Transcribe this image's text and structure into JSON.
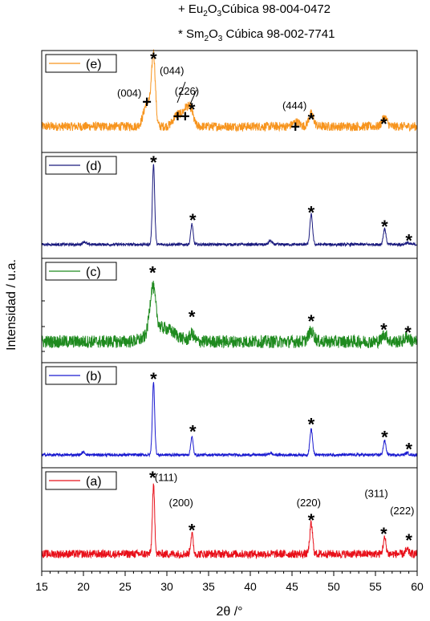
{
  "legend": {
    "line1_prefix": "+ Eu",
    "line1_sub1": "2",
    "line1_mid": "O",
    "line1_sub2": "3",
    "line1_suffix": "Cúbica 98-004-0472",
    "line2_prefix": "* Sm",
    "line2_sub1": "2",
    "line2_mid": "O",
    "line2_sub2": "3",
    "line2_suffix": " Cúbica 98-002-7741"
  },
  "chart_data": {
    "type": "line",
    "xlabel": "2θ /°",
    "ylabel": "Intensidad / u.a.",
    "xlim": [
      15,
      60
    ],
    "xticks": [
      15,
      20,
      25,
      30,
      35,
      40,
      45,
      50,
      55,
      60
    ],
    "grid": false,
    "series": [
      {
        "name": "(e)",
        "color": "#f7941d",
        "noise": 0.05,
        "base": 0.22,
        "peaks": [
          [
            27.7,
            0.28,
            0.45
          ],
          [
            28.4,
            0.75,
            0.22
          ],
          [
            31.3,
            0.14,
            0.5
          ],
          [
            32.3,
            0.18,
            0.35
          ],
          [
            32.9,
            0.16,
            0.3
          ],
          [
            45.5,
            0.05,
            0.4
          ],
          [
            47.3,
            0.14,
            0.3
          ],
          [
            56.1,
            0.1,
            0.3
          ]
        ],
        "markers": [
          {
            "sym": "*",
            "x": 28.4,
            "y": 1.02
          },
          {
            "sym": "+",
            "x": 27.6,
            "y": 0.5
          },
          {
            "sym": "+",
            "x": 31.3,
            "y": 0.34
          },
          {
            "sym": "+",
            "x": 32.2,
            "y": 0.34
          },
          {
            "sym": "*",
            "x": 33.0,
            "y": 0.45
          },
          {
            "sym": "+",
            "x": 45.4,
            "y": 0.22
          },
          {
            "sym": "*",
            "x": 47.3,
            "y": 0.34
          },
          {
            "sym": "*",
            "x": 56.0,
            "y": 0.29
          }
        ],
        "labels": [
          {
            "text": "(004)",
            "x": 25.5,
            "y": 0.6
          },
          {
            "text": "(044)",
            "x": 30.6,
            "y": 0.85
          },
          {
            "text": "(226)",
            "x": 32.4,
            "y": 0.62
          },
          {
            "text": "(444)",
            "x": 45.3,
            "y": 0.46
          }
        ]
      },
      {
        "name": "(d)",
        "color": "#1a1a7e",
        "noise": 0.015,
        "base": 0.08,
        "peaks": [
          [
            28.4,
            0.86,
            0.14
          ],
          [
            33.0,
            0.22,
            0.14
          ],
          [
            47.3,
            0.32,
            0.16
          ],
          [
            56.1,
            0.17,
            0.16
          ],
          [
            58.8,
            0.02,
            0.2
          ],
          [
            20.1,
            0.03,
            0.2
          ],
          [
            42.4,
            0.04,
            0.2
          ]
        ],
        "markers": [
          {
            "sym": "*",
            "x": 28.4,
            "y": 1.0
          },
          {
            "sym": "*",
            "x": 33.1,
            "y": 0.38
          },
          {
            "sym": "*",
            "x": 47.3,
            "y": 0.46
          },
          {
            "sym": "*",
            "x": 56.1,
            "y": 0.31
          },
          {
            "sym": "*",
            "x": 59.0,
            "y": 0.16
          }
        ],
        "labels": []
      },
      {
        "name": "(c)",
        "color": "#1e8a1e",
        "noise": 0.07,
        "base": 0.16,
        "peaks": [
          [
            28.3,
            0.5,
            0.35
          ],
          [
            29.5,
            0.15,
            1.4
          ],
          [
            33.0,
            0.08,
            0.25
          ],
          [
            47.3,
            0.11,
            0.35
          ],
          [
            56.1,
            0.08,
            0.3
          ],
          [
            58.8,
            0.05,
            0.3
          ]
        ],
        "markers": [
          {
            "sym": "*",
            "x": 28.3,
            "y": 0.95
          },
          {
            "sym": "*",
            "x": 33.0,
            "y": 0.47
          },
          {
            "sym": "*",
            "x": 47.3,
            "y": 0.42
          },
          {
            "sym": "*",
            "x": 56.0,
            "y": 0.33
          },
          {
            "sym": "*",
            "x": 58.9,
            "y": 0.3
          }
        ],
        "labels": []
      },
      {
        "name": "(b)",
        "color": "#1a1ad0",
        "noise": 0.015,
        "base": 0.07,
        "peaks": [
          [
            28.4,
            0.78,
            0.14
          ],
          [
            33.0,
            0.2,
            0.14
          ],
          [
            47.3,
            0.28,
            0.16
          ],
          [
            56.1,
            0.15,
            0.16
          ],
          [
            58.8,
            0.02,
            0.2
          ],
          [
            20.0,
            0.03,
            0.2
          ],
          [
            42.4,
            0.02,
            0.2
          ]
        ],
        "markers": [
          {
            "sym": "*",
            "x": 28.4,
            "y": 0.93
          },
          {
            "sym": "*",
            "x": 33.1,
            "y": 0.36
          },
          {
            "sym": "*",
            "x": 47.3,
            "y": 0.44
          },
          {
            "sym": "*",
            "x": 56.1,
            "y": 0.3
          },
          {
            "sym": "*",
            "x": 59.0,
            "y": 0.17
          }
        ],
        "labels": []
      },
      {
        "name": "(a)",
        "color": "#e8101a",
        "noise": 0.045,
        "base": 0.12,
        "peaks": [
          [
            28.4,
            0.74,
            0.14
          ],
          [
            33.0,
            0.22,
            0.15
          ],
          [
            47.3,
            0.33,
            0.17
          ],
          [
            56.1,
            0.17,
            0.17
          ],
          [
            58.8,
            0.04,
            0.2
          ]
        ],
        "markers": [
          {
            "sym": "*",
            "x": 28.3,
            "y": 1.0
          },
          {
            "sym": "*",
            "x": 33.0,
            "y": 0.42
          },
          {
            "sym": "*",
            "x": 47.3,
            "y": 0.53
          },
          {
            "sym": "*",
            "x": 56.0,
            "y": 0.38
          },
          {
            "sym": "*",
            "x": 59.0,
            "y": 0.31
          }
        ],
        "labels": [
          {
            "text": "(111)",
            "x": 29.9,
            "y": 0.97
          },
          {
            "text": "(200)",
            "x": 31.7,
            "y": 0.69
          },
          {
            "text": "(220)",
            "x": 47.0,
            "y": 0.69
          },
          {
            "text": "(311)",
            "x": 55.1,
            "y": 0.79
          },
          {
            "text": "(222)",
            "x": 58.2,
            "y": 0.6
          }
        ]
      }
    ]
  }
}
